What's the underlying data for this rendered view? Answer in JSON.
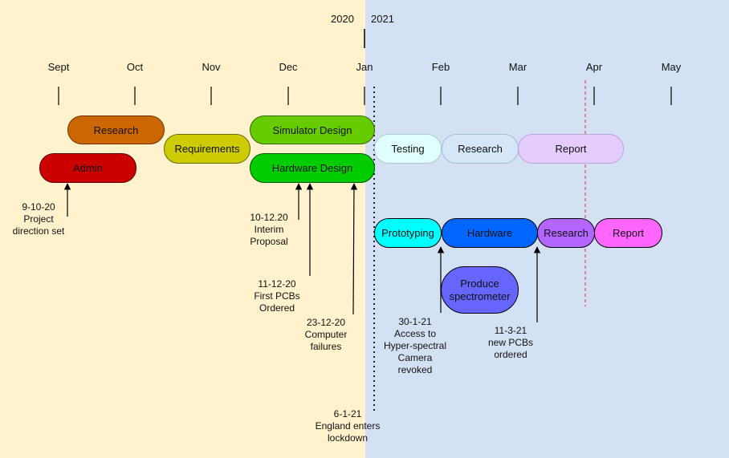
{
  "timeline": {
    "years": [
      "2020",
      "2021"
    ],
    "months": [
      "Sept",
      "Oct",
      "Nov",
      "Dec",
      "Jan",
      "Feb",
      "Mar",
      "Apr",
      "May"
    ]
  },
  "tasks": {
    "research_2020": "Research",
    "admin": "Admin",
    "requirements": "Requirements",
    "simulator_design": "Simulator Design",
    "hardware_design": "Hardware Design",
    "testing": "Testing",
    "research_plan": "Research",
    "report_plan": "Report",
    "prototyping": "Prototyping",
    "hardware": "Hardware",
    "research_actual": "Research",
    "report_actual": "Report",
    "produce_spectrometer": "Produce spectrometer"
  },
  "events": {
    "e1": [
      "9-10-20",
      "Project",
      "direction set"
    ],
    "e2": [
      "10-12.20",
      "Interim",
      "Proposal"
    ],
    "e3": [
      "11-12-20",
      "First PCBs",
      "Ordered"
    ],
    "e4": [
      "23-12-20",
      "Computer",
      "failures"
    ],
    "e5": [
      "30-1-21",
      "Access to",
      "Hyper-spectral",
      "Camera",
      "revoked"
    ],
    "e6": [
      "11-3-21",
      "new PCBs",
      "ordered"
    ],
    "e7": [
      "6-1-21",
      "England enters",
      "lockdown"
    ]
  },
  "colors": {
    "bg_2020": "#fff2cc",
    "bg_2021": "#d4e1f5",
    "research": "#cc6600",
    "admin": "#cc0000",
    "requirements": "#cccc00",
    "design": "#66cc00",
    "testing": "#e0ffff",
    "research_plan": "#d4e6f8",
    "report_plan": "#e5ccff",
    "prototyping": "#00ffff",
    "hardware": "#0066ff",
    "research_actual": "#b266ff",
    "report_actual": "#ff66ff",
    "spectrometer": "#6666ff"
  }
}
